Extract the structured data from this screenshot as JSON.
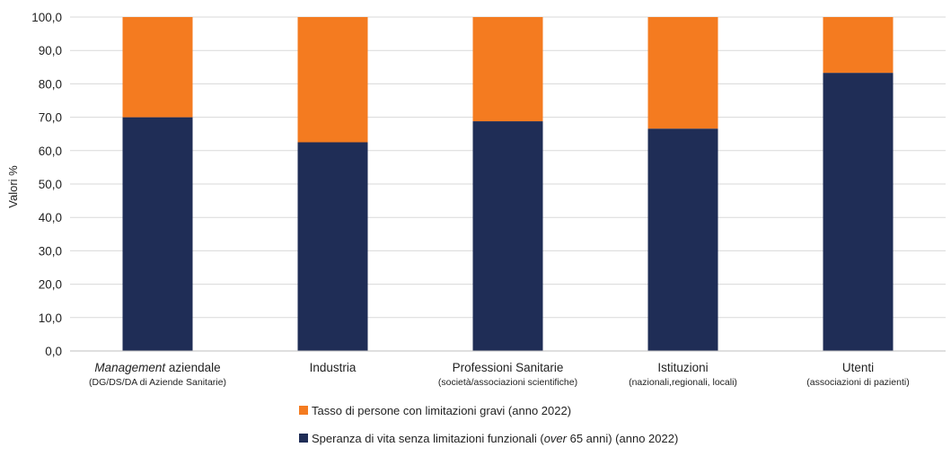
{
  "chart_data": {
    "type": "bar",
    "stacked": true,
    "ylabel": "Valori %",
    "ylim": [
      0,
      100
    ],
    "yticks": [
      "0,0",
      "10,0",
      "20,0",
      "30,0",
      "40,0",
      "50,0",
      "60,0",
      "70,0",
      "80,0",
      "90,0",
      "100,0"
    ],
    "ytick_values": [
      0,
      10,
      20,
      30,
      40,
      50,
      60,
      70,
      80,
      90,
      100
    ],
    "grid": true,
    "legend_position": "bottom",
    "categories": [
      {
        "main_italic": "Management",
        "main": " aziendale",
        "sub": "(DG/DS/DA di Aziende Sanitarie)"
      },
      {
        "main_italic": "",
        "main": "Industria",
        "sub": ""
      },
      {
        "main_italic": "",
        "main": "Professioni Sanitarie",
        "sub": "(società/associazioni scientifiche)"
      },
      {
        "main_italic": "",
        "main": "Istituzioni",
        "sub": "(nazionali,regionali, locali)"
      },
      {
        "main_italic": "",
        "main": "Utenti",
        "sub": "(associazioni di pazienti)"
      }
    ],
    "series": [
      {
        "name": "Speranza di vita senza limitazioni funzionali (over 65 anni) (anno 2022)",
        "name_parts": [
          "Speranza di vita senza limitazioni funzionali (",
          "over",
          " 65 anni) (anno 2022)"
        ],
        "color": "#1f2d56",
        "values": [
          70.0,
          62.5,
          68.8,
          66.6,
          83.3
        ]
      },
      {
        "name": "Tasso di persone con limitazioni gravi (anno 2022)",
        "name_parts": [
          "Tasso di persone con limitazioni gravi (anno 2022)",
          "",
          ""
        ],
        "color": "#f47b20",
        "values": [
          30.0,
          37.5,
          31.2,
          33.4,
          16.7
        ]
      }
    ]
  }
}
